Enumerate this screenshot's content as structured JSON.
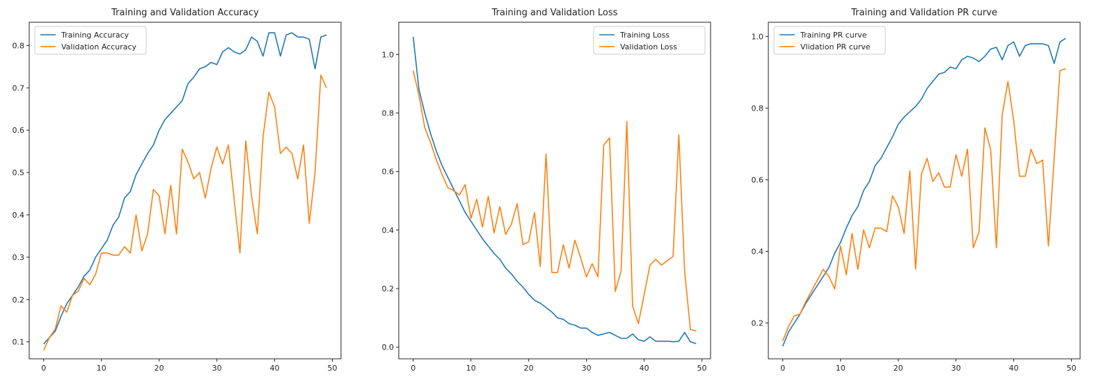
{
  "colors": {
    "training": "#1f77b4",
    "validation": "#ff7f0e"
  },
  "chart_data": [
    {
      "type": "line",
      "title": "Training and Validation Accuracy",
      "xlabel": "",
      "ylabel": "",
      "xlim": [
        -2.5,
        51.5
      ],
      "ylim": [
        0.06,
        0.855
      ],
      "xticks": [
        0,
        10,
        20,
        30,
        40,
        50
      ],
      "yticks": [
        0.1,
        0.2,
        0.3,
        0.4,
        0.5,
        0.6,
        0.7,
        0.8
      ],
      "grid": false,
      "legend_position": "top-left",
      "x": [
        0,
        1,
        2,
        3,
        4,
        5,
        6,
        7,
        8,
        9,
        10,
        11,
        12,
        13,
        14,
        15,
        16,
        17,
        18,
        19,
        20,
        21,
        22,
        23,
        24,
        25,
        26,
        27,
        28,
        29,
        30,
        31,
        32,
        33,
        34,
        35,
        36,
        37,
        38,
        39,
        40,
        41,
        42,
        43,
        44,
        45,
        46,
        47,
        48,
        49
      ],
      "series": [
        {
          "name": "Training Accuracy",
          "color_key": "training",
          "values": [
            0.095,
            0.11,
            0.125,
            0.16,
            0.19,
            0.21,
            0.23,
            0.255,
            0.27,
            0.3,
            0.32,
            0.34,
            0.375,
            0.395,
            0.44,
            0.455,
            0.495,
            0.52,
            0.545,
            0.565,
            0.6,
            0.625,
            0.64,
            0.655,
            0.67,
            0.71,
            0.725,
            0.745,
            0.75,
            0.76,
            0.755,
            0.785,
            0.795,
            0.785,
            0.78,
            0.79,
            0.82,
            0.81,
            0.775,
            0.83,
            0.83,
            0.775,
            0.825,
            0.83,
            0.82,
            0.82,
            0.815,
            0.745,
            0.82,
            0.825
          ]
        },
        {
          "name": "Validation Accuracy",
          "color_key": "validation",
          "values": [
            0.08,
            0.11,
            0.13,
            0.185,
            0.17,
            0.21,
            0.22,
            0.25,
            0.235,
            0.26,
            0.31,
            0.31,
            0.305,
            0.305,
            0.325,
            0.31,
            0.4,
            0.315,
            0.355,
            0.46,
            0.445,
            0.355,
            0.47,
            0.355,
            0.555,
            0.525,
            0.485,
            0.5,
            0.44,
            0.51,
            0.56,
            0.52,
            0.565,
            0.435,
            0.31,
            0.575,
            0.445,
            0.355,
            0.585,
            0.69,
            0.655,
            0.545,
            0.56,
            0.545,
            0.485,
            0.565,
            0.38,
            0.5,
            0.73,
            0.7
          ]
        }
      ]
    },
    {
      "type": "line",
      "title": "Training and Validation Loss",
      "xlabel": "",
      "ylabel": "",
      "xlim": [
        -2.5,
        51.5
      ],
      "ylim": [
        -0.04,
        1.11
      ],
      "xticks": [
        0,
        10,
        20,
        30,
        40,
        50
      ],
      "yticks": [
        0.0,
        0.2,
        0.4,
        0.6,
        0.8,
        1.0
      ],
      "grid": false,
      "legend_position": "top-right",
      "x": [
        0,
        1,
        2,
        3,
        4,
        5,
        6,
        7,
        8,
        9,
        10,
        11,
        12,
        13,
        14,
        15,
        16,
        17,
        18,
        19,
        20,
        21,
        22,
        23,
        24,
        25,
        26,
        27,
        28,
        29,
        30,
        31,
        32,
        33,
        34,
        35,
        36,
        37,
        38,
        39,
        40,
        41,
        42,
        43,
        44,
        45,
        46,
        47,
        48,
        49
      ],
      "series": [
        {
          "name": "Training Loss",
          "color_key": "training",
          "values": [
            1.06,
            0.88,
            0.8,
            0.73,
            0.67,
            0.62,
            0.58,
            0.54,
            0.5,
            0.46,
            0.43,
            0.4,
            0.37,
            0.345,
            0.32,
            0.3,
            0.27,
            0.25,
            0.225,
            0.205,
            0.18,
            0.16,
            0.15,
            0.135,
            0.12,
            0.1,
            0.095,
            0.08,
            0.075,
            0.065,
            0.065,
            0.05,
            0.04,
            0.045,
            0.05,
            0.04,
            0.03,
            0.03,
            0.045,
            0.025,
            0.02,
            0.035,
            0.02,
            0.02,
            0.02,
            0.018,
            0.02,
            0.05,
            0.018,
            0.012
          ]
        },
        {
          "name": "Validation Loss",
          "color_key": "validation",
          "values": [
            0.945,
            0.86,
            0.75,
            0.7,
            0.64,
            0.59,
            0.545,
            0.535,
            0.52,
            0.555,
            0.44,
            0.505,
            0.41,
            0.515,
            0.39,
            0.48,
            0.385,
            0.42,
            0.49,
            0.35,
            0.36,
            0.46,
            0.275,
            0.66,
            0.255,
            0.255,
            0.35,
            0.27,
            0.365,
            0.305,
            0.24,
            0.285,
            0.24,
            0.69,
            0.715,
            0.19,
            0.26,
            0.77,
            0.14,
            0.08,
            0.18,
            0.28,
            0.3,
            0.28,
            0.295,
            0.31,
            0.725,
            0.26,
            0.06,
            0.055
          ]
        }
      ]
    },
    {
      "type": "line",
      "title": "Training and Validation PR curve",
      "xlabel": "",
      "ylabel": "",
      "xlim": [
        -2.5,
        51.5
      ],
      "ylim": [
        0.1,
        1.04
      ],
      "xticks": [
        0,
        10,
        20,
        30,
        40,
        50
      ],
      "yticks": [
        0.2,
        0.4,
        0.6,
        0.8,
        1.0
      ],
      "grid": false,
      "legend_position": "top-left",
      "x": [
        0,
        1,
        2,
        3,
        4,
        5,
        6,
        7,
        8,
        9,
        10,
        11,
        12,
        13,
        14,
        15,
        16,
        17,
        18,
        19,
        20,
        21,
        22,
        23,
        24,
        25,
        26,
        27,
        28,
        29,
        30,
        31,
        32,
        33,
        34,
        35,
        36,
        37,
        38,
        39,
        40,
        41,
        42,
        43,
        44,
        45,
        46,
        47,
        48,
        49
      ],
      "series": [
        {
          "name": "Training PR curve",
          "color_key": "training",
          "values": [
            0.135,
            0.175,
            0.2,
            0.225,
            0.255,
            0.28,
            0.305,
            0.33,
            0.355,
            0.395,
            0.425,
            0.465,
            0.5,
            0.525,
            0.57,
            0.595,
            0.64,
            0.66,
            0.69,
            0.72,
            0.755,
            0.775,
            0.79,
            0.805,
            0.825,
            0.855,
            0.875,
            0.895,
            0.9,
            0.915,
            0.91,
            0.935,
            0.945,
            0.94,
            0.93,
            0.945,
            0.965,
            0.97,
            0.935,
            0.975,
            0.985,
            0.945,
            0.975,
            0.98,
            0.98,
            0.98,
            0.975,
            0.925,
            0.985,
            0.995
          ]
        },
        {
          "name": "Vlidation PR curve",
          "color_key": "validation",
          "values": [
            0.15,
            0.19,
            0.22,
            0.225,
            0.26,
            0.29,
            0.32,
            0.35,
            0.33,
            0.295,
            0.415,
            0.335,
            0.45,
            0.35,
            0.46,
            0.41,
            0.465,
            0.465,
            0.455,
            0.555,
            0.525,
            0.45,
            0.625,
            0.35,
            0.615,
            0.66,
            0.595,
            0.62,
            0.58,
            0.58,
            0.67,
            0.61,
            0.685,
            0.41,
            0.455,
            0.745,
            0.685,
            0.41,
            0.78,
            0.875,
            0.765,
            0.61,
            0.61,
            0.685,
            0.645,
            0.655,
            0.415,
            0.66,
            0.905,
            0.91
          ]
        }
      ]
    }
  ]
}
